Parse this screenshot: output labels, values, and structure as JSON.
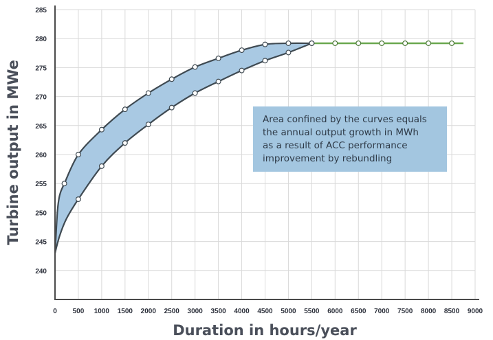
{
  "chart_data": {
    "type": "area",
    "xlabel": "Duration in hours/year",
    "ylabel": "Turbine output in MWe",
    "xlim": [
      0,
      9000
    ],
    "ylim": [
      235,
      285
    ],
    "x_ticks": [
      0,
      500,
      1000,
      1500,
      2000,
      2500,
      3000,
      3500,
      4000,
      4500,
      5000,
      5500,
      6000,
      6500,
      7000,
      7500,
      8000,
      8500,
      9000
    ],
    "y_ticks": [
      240,
      245,
      250,
      255,
      260,
      265,
      270,
      275,
      280,
      285
    ],
    "grid": true,
    "series": [
      {
        "key": "upper",
        "points": [
          [
            0,
            243
          ],
          [
            50,
            250
          ],
          [
            100,
            253
          ],
          [
            200,
            255
          ],
          [
            500,
            260
          ],
          [
            1000,
            264.3
          ],
          [
            1500,
            267.8
          ],
          [
            2000,
            270.6
          ],
          [
            2500,
            273.0
          ],
          [
            3000,
            275.1
          ],
          [
            3500,
            276.6
          ],
          [
            4000,
            278.0
          ],
          [
            4500,
            279.0
          ],
          [
            5000,
            279.2
          ],
          [
            5500,
            279.2
          ]
        ],
        "markers": [
          [
            200,
            255
          ],
          [
            500,
            260
          ],
          [
            1000,
            264.3
          ],
          [
            1500,
            267.8
          ],
          [
            2000,
            270.6
          ],
          [
            2500,
            273.0
          ],
          [
            3000,
            275.1
          ],
          [
            3500,
            276.6
          ],
          [
            4000,
            278.0
          ],
          [
            4500,
            279.0
          ],
          [
            5000,
            279.2
          ],
          [
            5500,
            279.2
          ]
        ]
      },
      {
        "key": "lower",
        "points": [
          [
            0,
            243
          ],
          [
            100,
            246
          ],
          [
            250,
            249
          ],
          [
            500,
            252.3
          ],
          [
            1000,
            258.0
          ],
          [
            1500,
            262.0
          ],
          [
            2000,
            265.2
          ],
          [
            2500,
            268.1
          ],
          [
            3000,
            270.6
          ],
          [
            3500,
            272.6
          ],
          [
            4000,
            274.5
          ],
          [
            4500,
            276.2
          ],
          [
            5000,
            277.6
          ],
          [
            5500,
            279.2
          ]
        ],
        "markers": [
          [
            500,
            252.3
          ],
          [
            1000,
            258.0
          ],
          [
            1500,
            262.0
          ],
          [
            2000,
            265.2
          ],
          [
            2500,
            268.1
          ],
          [
            3000,
            270.6
          ],
          [
            3500,
            272.6
          ],
          [
            4000,
            274.5
          ],
          [
            4500,
            276.2
          ],
          [
            5000,
            277.6
          ],
          [
            5500,
            279.2
          ]
        ]
      },
      {
        "key": "flat",
        "points": [
          [
            5500,
            279.2
          ],
          [
            8750,
            279.2
          ]
        ],
        "markers": [
          [
            6000,
            279.2
          ],
          [
            6500,
            279.2
          ],
          [
            7000,
            279.2
          ],
          [
            7500,
            279.2
          ],
          [
            8000,
            279.2
          ],
          [
            8500,
            279.2
          ]
        ]
      }
    ],
    "annotation": {
      "lines": [
        "Area confined by the curves equals",
        "the annual output growth in MWh",
        "as a result of ACC performance",
        "improvement by rebundling"
      ]
    }
  },
  "colors": {
    "fill": "#a9c9e3",
    "curve": "#3f4a52",
    "flat_line": "#6aa84f",
    "annotation_bg": "#a3c6e0",
    "marker_fill": "#ffffff"
  }
}
